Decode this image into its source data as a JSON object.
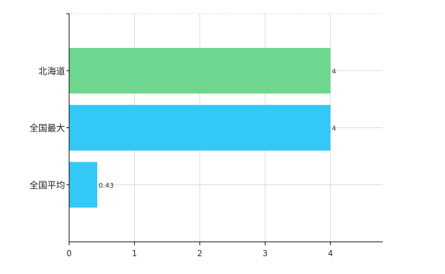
{
  "chart_data": {
    "type": "bar",
    "orientation": "horizontal",
    "categories": [
      "北海道",
      "全国最大",
      "全国平均"
    ],
    "values": [
      4,
      4,
      0.43
    ],
    "data_labels": [
      "4",
      "4",
      "0.43"
    ],
    "colors": [
      "#6dd68f",
      "#33c8f6",
      "#33c8f6"
    ],
    "xlim": [
      0,
      4.8
    ],
    "xticks": [
      0,
      1,
      2,
      3,
      4
    ],
    "xtick_labels": [
      "0",
      "1",
      "2",
      "3",
      "4"
    ],
    "grid": true,
    "title": "",
    "xlabel": "",
    "ylabel": ""
  }
}
